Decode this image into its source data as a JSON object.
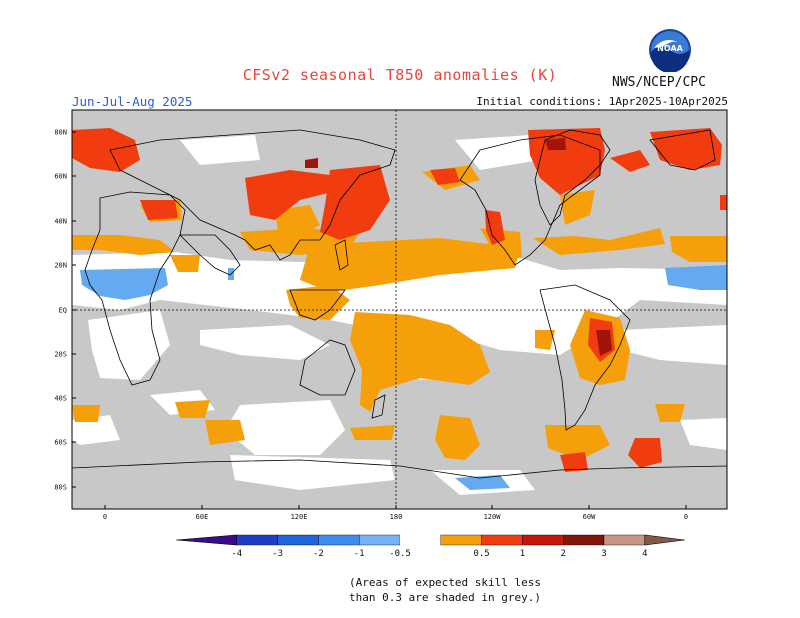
{
  "header": {
    "title": "CFSv2 seasonal T850 anomalies (K)",
    "season": "Jun-Jul-Aug 2025",
    "initial_conditions": "Initial conditions: 1Apr2025-10Apr2025",
    "organization": "NWS/NCEP/CPC",
    "logo_text": "NOAA"
  },
  "map": {
    "lat_labels": [
      "80N",
      "60N",
      "40N",
      "20N",
      "EQ",
      "20S",
      "40S",
      "60S",
      "80S"
    ],
    "lon_labels": [
      "0",
      "60E",
      "120E",
      "180",
      "120W",
      "60W",
      "0"
    ],
    "colors": {
      "skill_grey": "#c8c8c8",
      "orange": "#f5a00a",
      "red": "#f03c0f",
      "darkred": "#a0140a",
      "lightblue": "#64aaf0",
      "coast": "#000000"
    }
  },
  "colorbar": {
    "labels": [
      "-4",
      "-3",
      "-2",
      "-1",
      "-0.5",
      "0.5",
      "1",
      "2",
      "3",
      "4"
    ],
    "colors": [
      "#3c0a8c",
      "#1e3cc8",
      "#1e64dc",
      "#3c8cf0",
      "#78b4f5",
      "#ffffff",
      "#f5a00a",
      "#f03c0f",
      "#c8140a",
      "#82140a",
      "#c89682",
      "#825a46"
    ]
  },
  "footer": {
    "note_line1": "(Areas of expected skill less",
    "note_line2": "than 0.3 are shaded in grey.)"
  }
}
